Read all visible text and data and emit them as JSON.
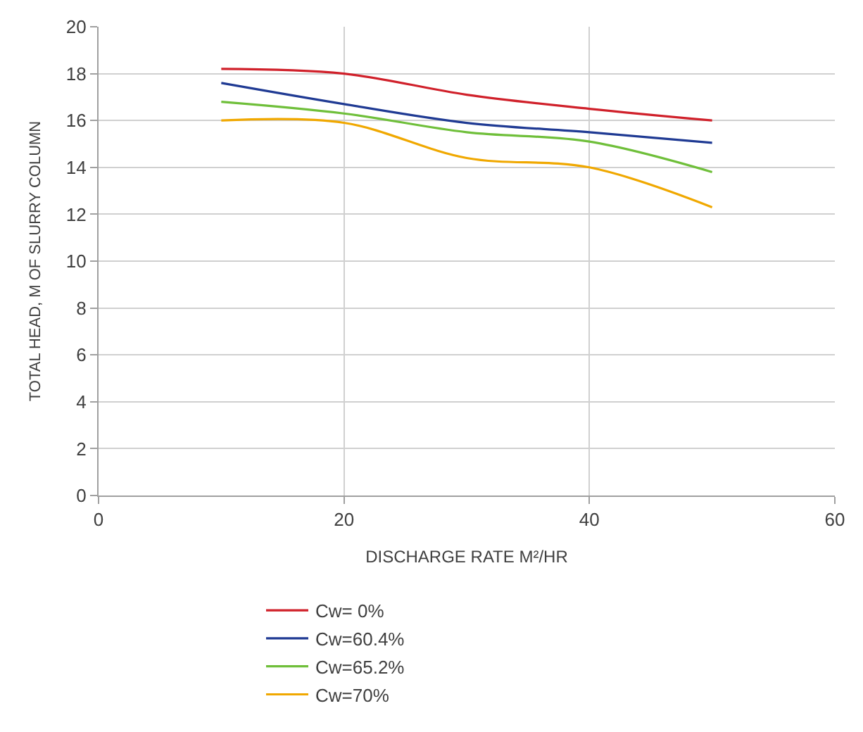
{
  "chart_data": {
    "type": "line",
    "xlabel": "DISCHARGE RATE M²/HR",
    "ylabel": "TOTAL HEAD, M OF SLURRY COLUMN",
    "x": [
      10,
      20,
      30,
      40,
      50
    ],
    "series": [
      {
        "name": "Cw= 0%",
        "color": "#d0202a",
        "values": [
          18.2,
          18.0,
          17.1,
          16.5,
          16.0
        ]
      },
      {
        "name": "Cw=60.4%",
        "color": "#1f3a93",
        "values": [
          17.6,
          16.7,
          15.9,
          15.5,
          15.05
        ]
      },
      {
        "name": "Cw=65.2%",
        "color": "#6fbf3a",
        "values": [
          16.8,
          16.3,
          15.5,
          15.1,
          13.8
        ]
      },
      {
        "name": "Cw=70%",
        "color": "#f0a800",
        "values": [
          16.0,
          15.9,
          14.4,
          14.0,
          12.3
        ]
      }
    ],
    "xlim": [
      0,
      60
    ],
    "xticks": [
      0,
      20,
      40,
      60
    ],
    "ylim": [
      0,
      20
    ],
    "yticks": [
      0,
      2,
      4,
      6,
      8,
      10,
      12,
      14,
      16,
      18,
      20
    ],
    "grid": true,
    "legend": "bottom",
    "marker": "none",
    "line_style": "solid"
  }
}
